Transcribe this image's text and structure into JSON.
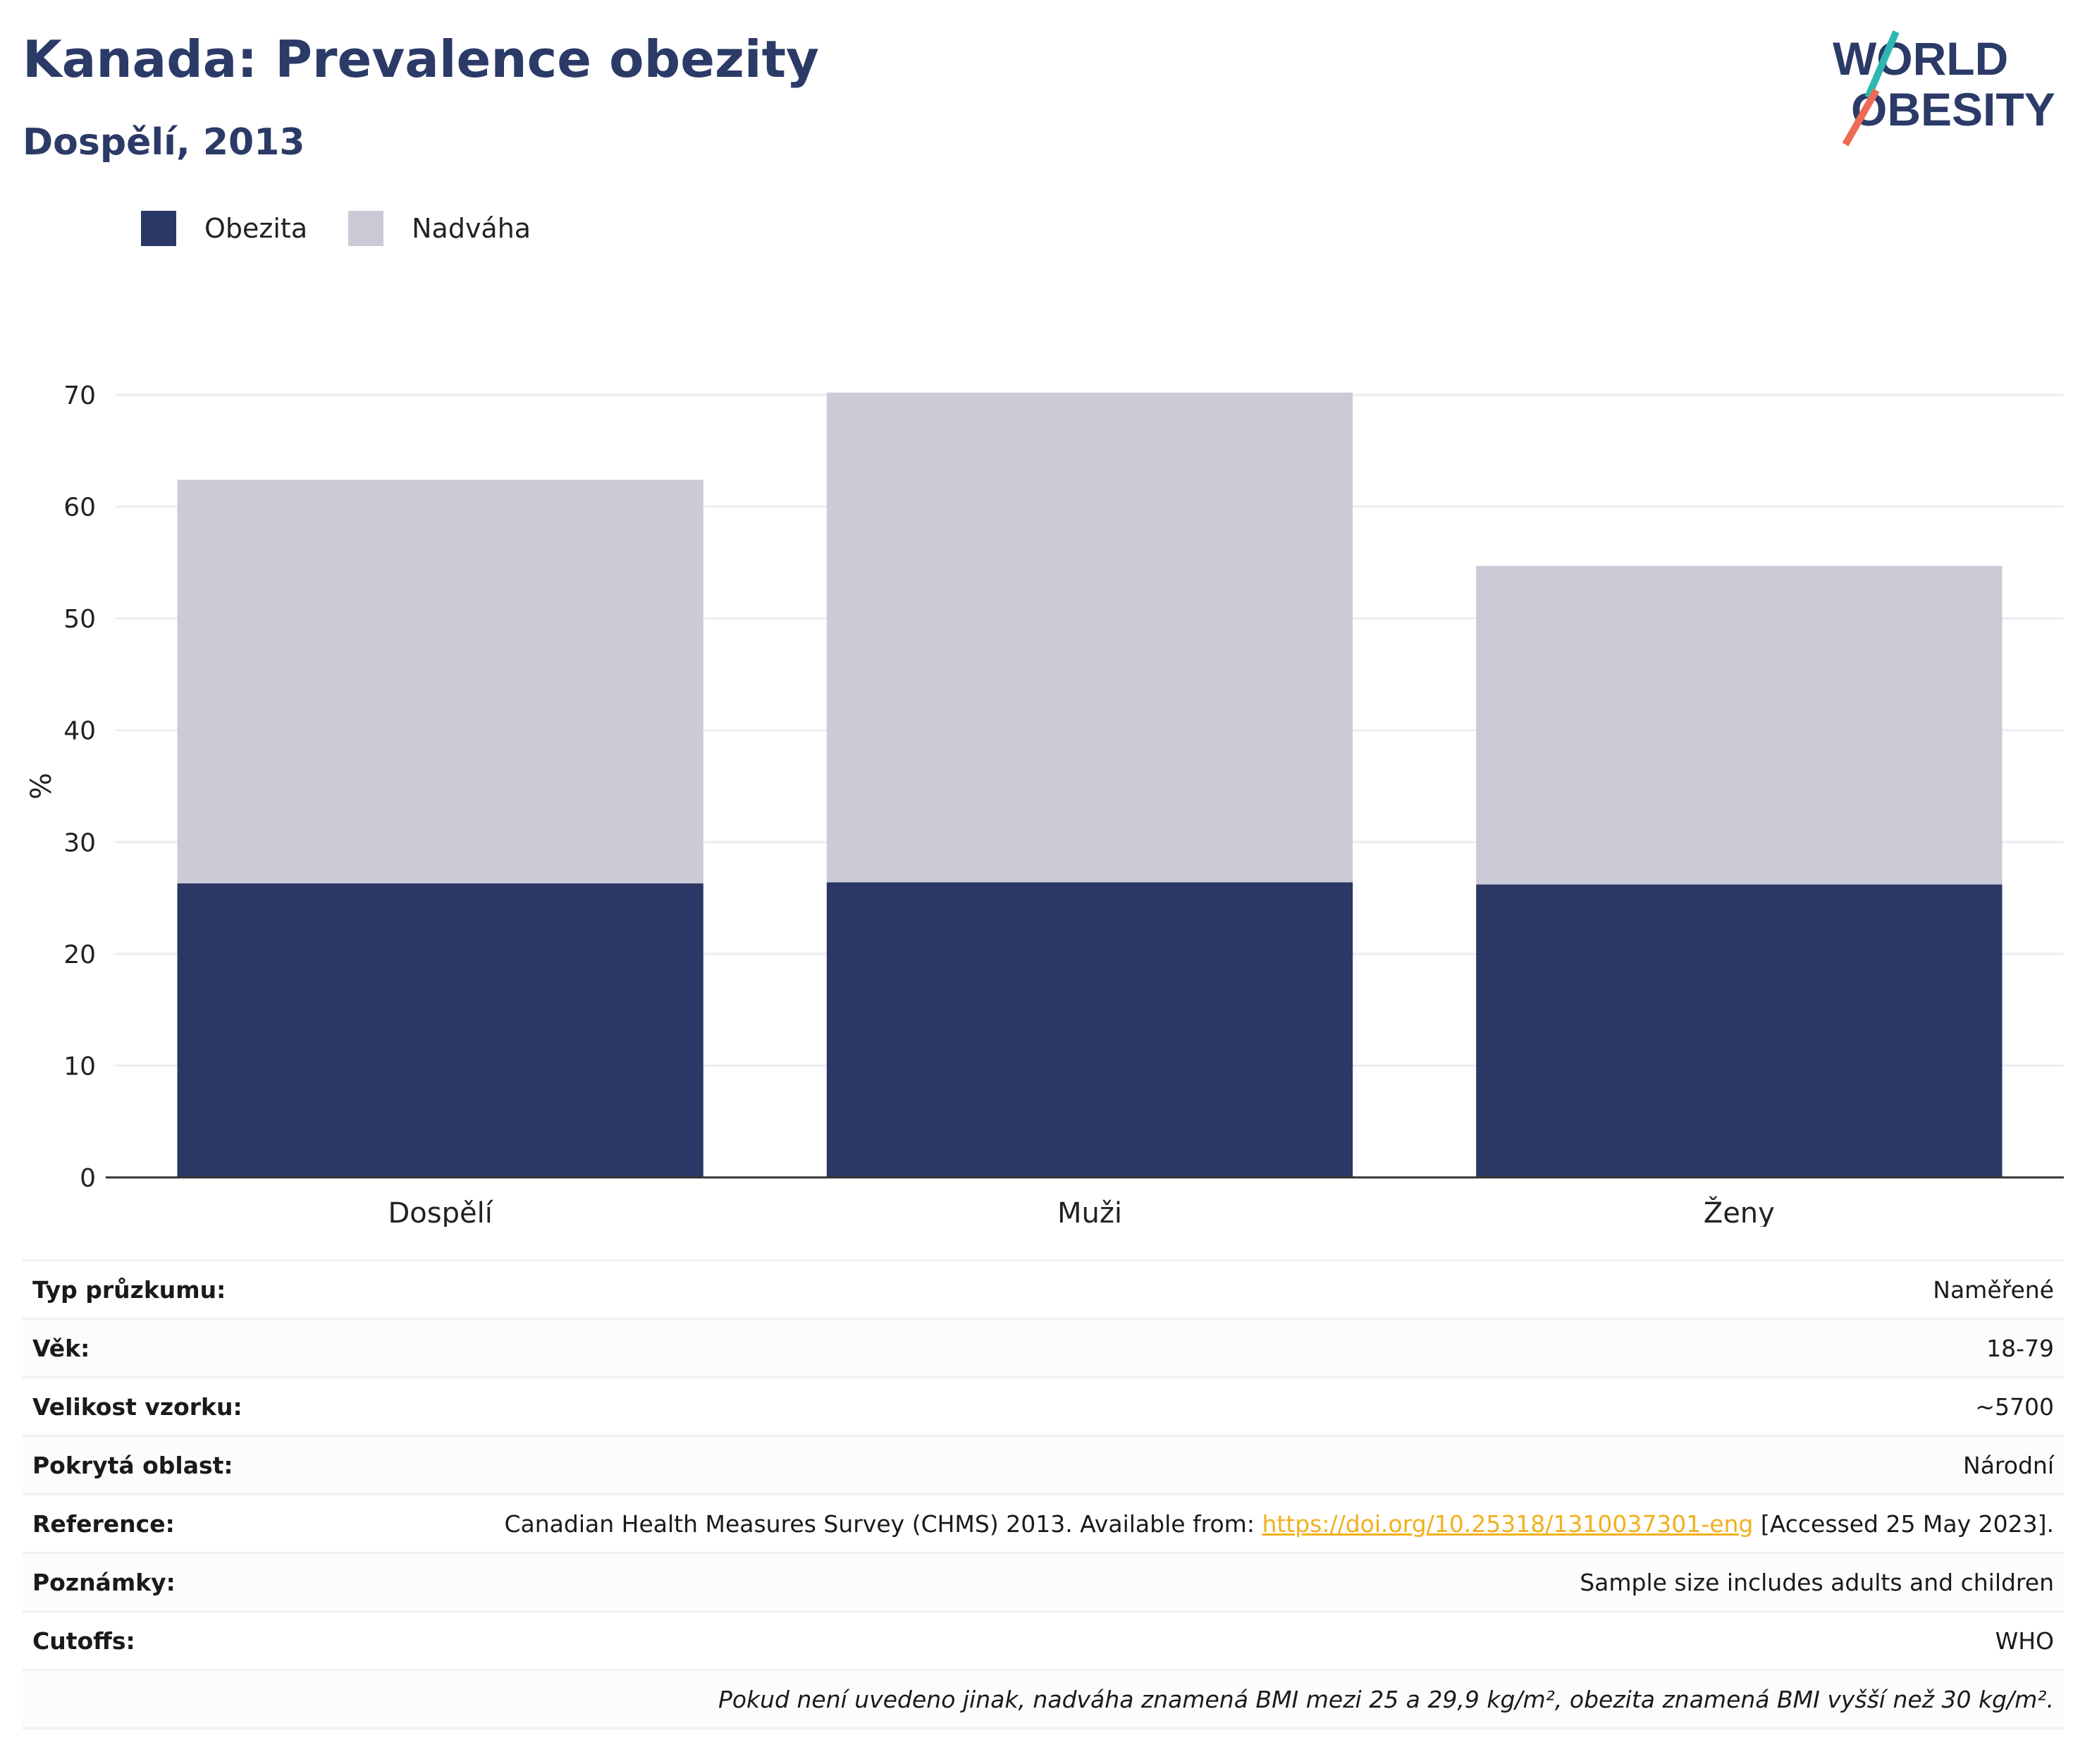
{
  "header": {
    "title": "Kanada: Prevalence obezity",
    "subtitle": "Dospělí, 2013"
  },
  "logo": {
    "line1": "WORLD",
    "line2": "OBESITY"
  },
  "colors": {
    "obesity": "#2b3765",
    "overweight": "#cacbd6",
    "title": "#2b3a67",
    "link": "#f2b01e",
    "grid": "#ececf2"
  },
  "chart_data": {
    "type": "bar",
    "stacked": true,
    "categories": [
      "Dospělí",
      "Muži",
      "Ženy"
    ],
    "series": [
      {
        "name": "Obezita",
        "values": [
          26.3,
          26.4,
          26.2
        ]
      },
      {
        "name": "Nadváha",
        "values": [
          36.1,
          43.8,
          28.5
        ]
      }
    ],
    "ylabel": "%",
    "ylim": [
      0,
      70
    ],
    "yticks": [
      0,
      10,
      20,
      30,
      40,
      50,
      60,
      70
    ],
    "grid": true,
    "legend_position": "top-left"
  },
  "info": {
    "rows": [
      {
        "key": "Typ průzkumu:",
        "value": "Naměřené"
      },
      {
        "key": "Věk:",
        "value": "18-79"
      },
      {
        "key": "Velikost vzorku:",
        "value": "~5700"
      },
      {
        "key": "Pokrytá oblast:",
        "value": "Národní"
      }
    ],
    "reference": {
      "key": "Reference:",
      "prefix": "Canadian Health Measures Survey (CHMS) 2013. Available from: ",
      "link": "https://doi.org/10.25318/1310037301-eng",
      "suffix": " [Accessed 25 May 2023]."
    },
    "notes": {
      "key": "Poznámky:",
      "value": "Sample size includes adults and children"
    },
    "cutoffs": {
      "key": "Cutoffs:",
      "value": "WHO"
    },
    "footnote": "Pokud není uvedeno jinak, nadváha znamená BMI mezi 25 a 29,9 kg/m², obezita znamená BMI vyšší než 30 kg/m²."
  }
}
